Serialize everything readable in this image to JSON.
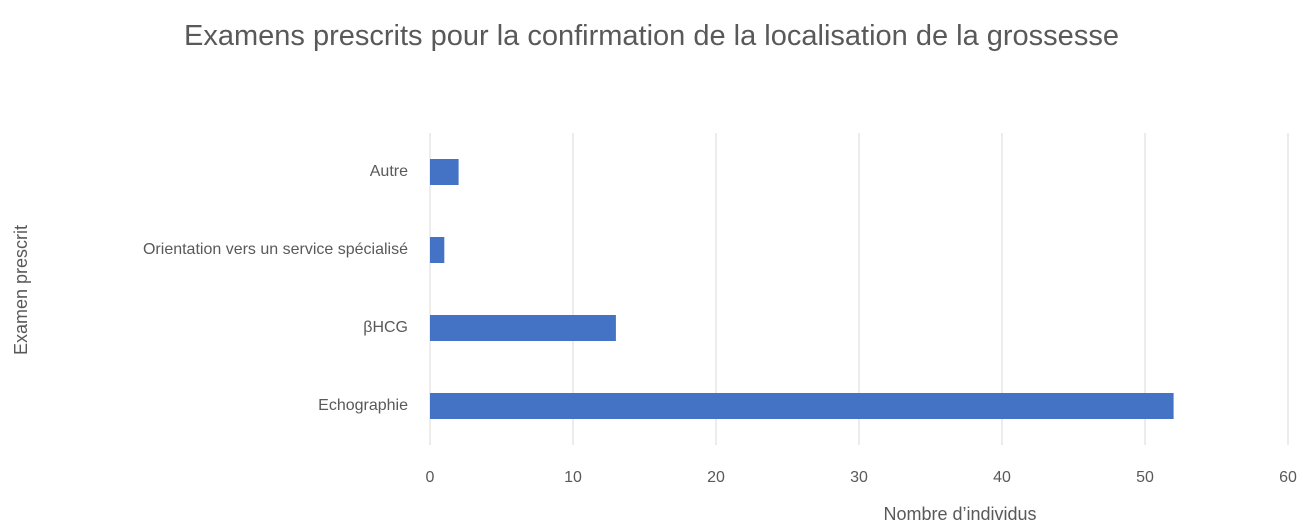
{
  "chart_data": {
    "type": "bar",
    "orientation": "horizontal",
    "title": "Examens prescrits pour la confirmation de la localisation de la grossesse",
    "categories": [
      "Echographie",
      "βHCG",
      "Orientation vers un service spécialisé",
      "Autre"
    ],
    "values": [
      52,
      13,
      1,
      2
    ],
    "color": "#4472c4",
    "x_label": "Nombre d’individus",
    "y_label": "Examen prescrit",
    "xlim": [
      0,
      60
    ],
    "xticks": [
      0,
      10,
      20,
      30,
      40,
      50,
      60
    ],
    "grid": true
  }
}
